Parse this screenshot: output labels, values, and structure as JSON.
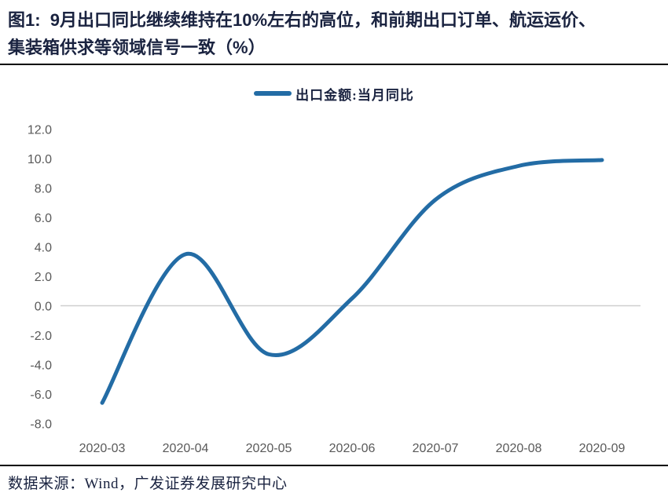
{
  "figure": {
    "title_lines": [
      "图1:  9月出口同比继续维持在10%左右的高位，和前期出口订单、航运运价、",
      "集装箱供求等领域信号一致（%）"
    ],
    "source_text": "数据来源：Wind，广发证券发展研究中心"
  },
  "colors": {
    "line": "#236CA5",
    "title_text": "#1A2340",
    "axis_text": "#595959",
    "grid": "#CFCFCF",
    "divider": "#000000"
  },
  "chart_data": {
    "type": "line",
    "title": "图1: 9月出口同比继续维持在10%左右的高位，和前期出口订单、航运运价、集装箱供求等领域信号一致（%）",
    "categories": [
      "2020-03",
      "2020-04",
      "2020-05",
      "2020-06",
      "2020-07",
      "2020-08",
      "2020-09"
    ],
    "series": [
      {
        "name": "出口金额:当月同比",
        "values": [
          -6.6,
          3.5,
          -3.3,
          0.5,
          7.2,
          9.5,
          9.9
        ],
        "color": "#236CA5"
      }
    ],
    "xlabel": "",
    "ylabel": "",
    "ylim": [
      -8,
      12
    ],
    "ytick_step": 2,
    "ytick_format": "0.0",
    "grid": "zero-line-only",
    "legend_position": "top-center",
    "smooth": true,
    "source": "数据来源：Wind，广发证券发展研究中心"
  }
}
